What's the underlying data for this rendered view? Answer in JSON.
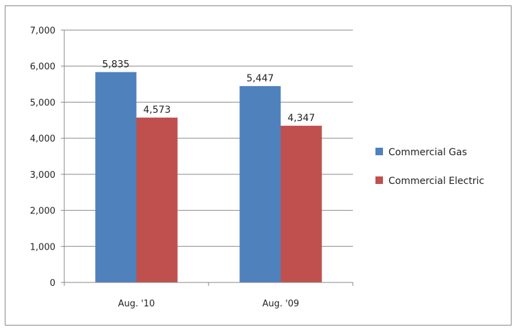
{
  "chart_data": {
    "type": "bar",
    "categories": [
      "Aug. '10",
      "Aug. '09"
    ],
    "series": [
      {
        "name": "Commercial Gas",
        "values": [
          5835,
          5447
        ],
        "labels": [
          "5,835",
          "5,447"
        ],
        "color": "#4f81bd"
      },
      {
        "name": "Commercial Electric",
        "values": [
          4573,
          4347
        ],
        "labels": [
          "4,573",
          "4,347"
        ],
        "color": "#c0504d"
      }
    ],
    "y_ticks": [
      0,
      1000,
      2000,
      3000,
      4000,
      5000,
      6000,
      7000
    ],
    "y_tick_labels": [
      "0",
      "1,000",
      "2,000",
      "3,000",
      "4,000",
      "5,000",
      "6,000",
      "7,000"
    ],
    "ylim": [
      0,
      7000
    ],
    "grid": true,
    "legend": "right"
  }
}
